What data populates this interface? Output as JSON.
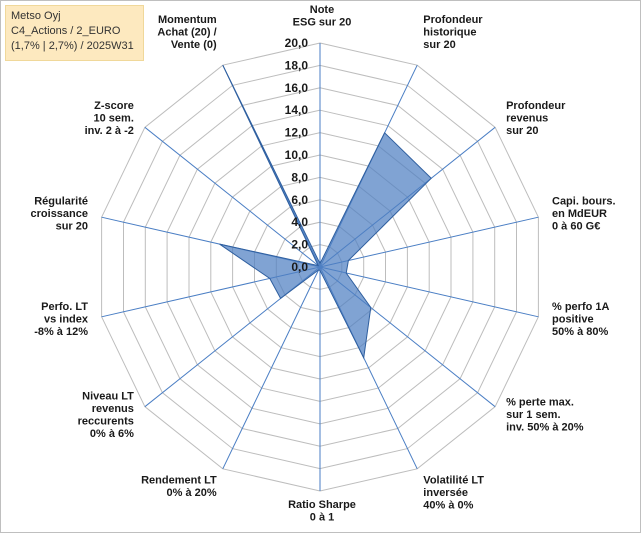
{
  "title_box": {
    "line1": "Metso Oyj",
    "line2": "C4_Actions / 2_EURO",
    "line3": "(1,7% | 2,7%) / 2025W31"
  },
  "colors": {
    "fill": "#4f7fc2",
    "fill_opacity": 0.72,
    "stroke": "#2f5f9f",
    "axis": "#4a7ec4",
    "grid": "#bdbdbd",
    "title_bg": "#fde9bf"
  },
  "chart_data": {
    "type": "radar",
    "title": "",
    "rmin": 0,
    "rmax": 20,
    "ticks": [
      "0,0",
      "2,0",
      "4,0",
      "6,0",
      "8,0",
      "10,0",
      "12,0",
      "14,0",
      "16,0",
      "18,0",
      "20,0"
    ],
    "grid": true,
    "legend": "none",
    "axes": [
      [
        "Note",
        "ESG sur 20"
      ],
      [
        "Profondeur",
        "historique",
        "sur 20"
      ],
      [
        "Profondeur",
        "revenus",
        "sur 20"
      ],
      [
        "Capi. bours.",
        "en MdEUR",
        "0 à 60 G€"
      ],
      [
        "% perfo 1A",
        "positive",
        "50% à 80%"
      ],
      [
        "% perte max.",
        "sur 1 sem.",
        "inv. 50% à 20%"
      ],
      [
        "Volatilité LT",
        "inversée",
        "40% à 0%"
      ],
      [
        "Ratio Sharpe",
        "0 à 1"
      ],
      [
        "Rendement LT",
        "0% à 20%"
      ],
      [
        "Niveau LT",
        "revenus",
        "reccurents",
        "0% à 6%"
      ],
      [
        "Perfo. LT",
        "vs index",
        "-8% à 12%"
      ],
      [
        "Régularité",
        "croissance",
        "sur 20"
      ],
      [
        "Z-score",
        "10 sem.",
        "inv. 2 à -2"
      ],
      [
        "Momentum",
        "Achat (20) /",
        "Vente (0)"
      ]
    ],
    "values": [
      0.3,
      13.3,
      12.7,
      2.6,
      2.4,
      5.8,
      9.0,
      0.3,
      0.3,
      4.5,
      4.6,
      9.2,
      0.2,
      20.0
    ]
  }
}
